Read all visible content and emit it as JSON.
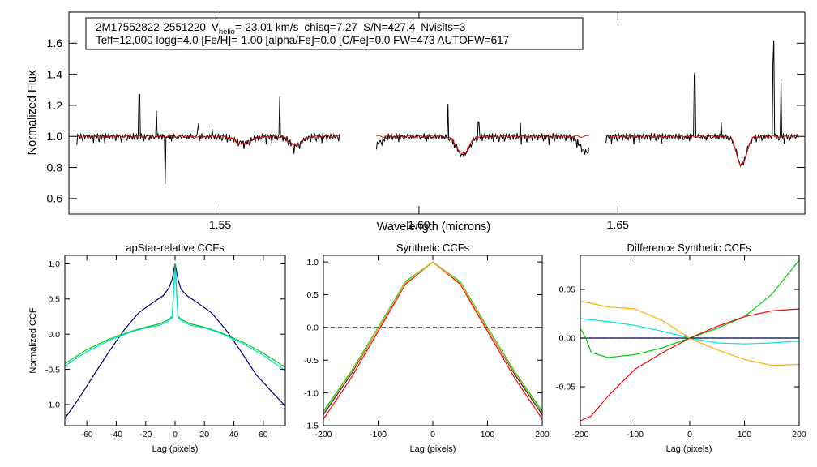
{
  "chart_data": [
    {
      "id": "spectrum",
      "type": "line",
      "title": "",
      "xlabel": "Wavelength (microns)",
      "ylabel": "Normalized Flux",
      "xlim": [
        1.512,
        1.697
      ],
      "ylim": [
        0.5,
        1.8
      ],
      "xticks": [
        "1.55",
        "1.60",
        "1.65"
      ],
      "xtick_values": [
        1.55,
        1.6,
        1.65
      ],
      "yticks": [
        "0.6",
        "0.8",
        "1.0",
        "1.2",
        "1.4",
        "1.6"
      ],
      "ytick_values": [
        0.6,
        0.8,
        1.0,
        1.2,
        1.4,
        1.6
      ],
      "annotation": {
        "line1": {
          "star": "2M17552822-2551220",
          "vhelio_label": "V",
          "vhelio_sub": "helio",
          "vhelio_value": "=-23.01 km/s",
          "chisq": "chisq=7.27",
          "sn": "S/N=427.4",
          "nvisits": "Nvisits=3"
        },
        "line2": "Teff=12,000 logg=4.0 [Fe/H]=-1.00 [alpha/Fe]=0.0 [C/Fe]=0.0 FW=473 AUTOFW=617"
      },
      "chips": [
        [
          1.514,
          1.58
        ],
        [
          1.5893,
          1.6427
        ],
        [
          1.647,
          1.6955
        ]
      ],
      "series": [
        {
          "name": "observed",
          "color": "#000000",
          "features": [
            [
              1.5558,
              0.04,
              0.002
            ],
            [
              1.569,
              0.06,
              0.0015
            ],
            [
              1.611,
              0.12,
              0.0015
            ],
            [
              1.642,
              0.1,
              0.0015
            ],
            [
              1.6811,
              0.18,
              0.0012
            ]
          ],
          "spikes": [
            [
              1.5297,
              0.27
            ],
            [
              1.534,
              0.17
            ],
            [
              1.5362,
              -0.29
            ],
            [
              1.5445,
              0.07
            ],
            [
              1.548,
              0.05
            ],
            [
              1.565,
              0.27
            ],
            [
              1.6073,
              0.22
            ],
            [
              1.615,
              0.09
            ],
            [
              1.6255,
              0.07
            ],
            [
              1.6693,
              0.41
            ],
            [
              1.676,
              0.09
            ],
            [
              1.6891,
              0.62
            ],
            [
              1.691,
              0.37
            ],
            [
              1.689,
              -0.12
            ]
          ]
        },
        {
          "name": "synthetic",
          "color": "#ff0000",
          "features": [
            [
              1.5558,
              0.05,
              0.002
            ],
            [
              1.569,
              0.06,
              0.0015
            ],
            [
              1.611,
              0.11,
              0.0015
            ],
            [
              1.6811,
              0.19,
              0.0012
            ]
          ],
          "spikes": []
        }
      ]
    },
    {
      "id": "apstar-ccf",
      "type": "line",
      "title": "apStar-relative CCFs",
      "xlabel": "Lag (pixels)",
      "ylabel": "Normalized CCF",
      "xlim": [
        -75,
        75
      ],
      "ylim": [
        -1.3,
        1.12
      ],
      "xticks": [
        "-60",
        "-40",
        "-20",
        "0",
        "20",
        "40",
        "60"
      ],
      "xtick_values": [
        -60,
        -40,
        -20,
        0,
        20,
        40,
        60
      ],
      "yticks": [
        "-1.0",
        "-0.5",
        "0.0",
        "0.5",
        "1.0"
      ],
      "ytick_values": [
        -1.0,
        -0.5,
        0.0,
        0.5,
        1.0
      ],
      "series": [
        {
          "name": "total",
          "color": "#000080",
          "x": [
            -75,
            -65,
            -55,
            -45,
            -35,
            -25,
            -15,
            -8,
            -4,
            -2,
            0,
            2,
            4,
            8,
            15,
            25,
            35,
            45,
            55,
            65,
            75
          ],
          "y": [
            -1.2,
            -0.9,
            -0.57,
            -0.25,
            0.05,
            0.3,
            0.45,
            0.55,
            0.66,
            0.78,
            1.0,
            0.78,
            0.64,
            0.55,
            0.45,
            0.3,
            0.05,
            -0.25,
            -0.57,
            -0.8,
            -1.02
          ]
        },
        {
          "name": "visit-1",
          "color": "#00cc00",
          "x": [
            -75,
            -60,
            -45,
            -30,
            -20,
            -10,
            -5,
            -2,
            0,
            2,
            5,
            10,
            20,
            30,
            45,
            60,
            75
          ],
          "y": [
            -0.42,
            -0.22,
            -0.07,
            0.04,
            0.1,
            0.15,
            0.2,
            0.25,
            1.0,
            0.25,
            0.2,
            0.15,
            0.1,
            0.03,
            -0.1,
            -0.27,
            -0.47
          ]
        },
        {
          "name": "visit-2",
          "color": "#00e5e5",
          "x": [
            -75,
            -60,
            -45,
            -30,
            -20,
            -10,
            -5,
            -2,
            0,
            2,
            5,
            10,
            20,
            30,
            45,
            60,
            75
          ],
          "y": [
            -0.45,
            -0.25,
            -0.09,
            0.03,
            0.09,
            0.13,
            0.18,
            0.23,
            0.92,
            0.23,
            0.18,
            0.13,
            0.09,
            0.02,
            -0.12,
            -0.3,
            -0.52
          ]
        }
      ]
    },
    {
      "id": "synthetic-ccf",
      "type": "line",
      "title": "Synthetic CCFs",
      "xlabel": "Lag (pixels)",
      "ylabel": "",
      "xlim": [
        -200,
        200
      ],
      "ylim": [
        -1.5,
        1.1
      ],
      "xticks": [
        "-200",
        "-100",
        "0",
        "100",
        "200"
      ],
      "xtick_values": [
        -200,
        -100,
        0,
        100,
        200
      ],
      "yticks": [
        "-1.5",
        "-1.0",
        "-0.5",
        "0.0",
        "0.5",
        "1.0"
      ],
      "ytick_values": [
        -1.5,
        -1.0,
        -0.5,
        0.0,
        0.5,
        1.0
      ],
      "reference_line": {
        "y": 0,
        "style": "dashed"
      },
      "series": [
        {
          "name": "total",
          "color": "#000080",
          "x": [
            -200,
            -150,
            -100,
            -50,
            0,
            50,
            100,
            150,
            200
          ],
          "y": [
            -1.33,
            -0.72,
            -0.02,
            0.68,
            1.0,
            0.68,
            -0.02,
            -0.72,
            -1.33
          ]
        },
        {
          "name": "visit-1",
          "color": "#00cc00",
          "x": [
            -200,
            -150,
            -100,
            -50,
            0,
            50,
            100,
            150,
            200
          ],
          "y": [
            -1.28,
            -0.68,
            0.0,
            0.7,
            1.0,
            0.7,
            0.0,
            -0.68,
            -1.28
          ]
        },
        {
          "name": "visit-2",
          "color": "#00e5e5",
          "x": [
            -200,
            -150,
            -100,
            -50,
            0,
            50,
            100,
            150,
            200
          ],
          "y": [
            -1.3,
            -0.7,
            -0.01,
            0.69,
            1.0,
            0.69,
            -0.01,
            -0.7,
            -1.3
          ]
        },
        {
          "name": "visit-3",
          "color": "#ff0000",
          "x": [
            -200,
            -150,
            -100,
            -50,
            0,
            50,
            100,
            150,
            200
          ],
          "y": [
            -1.4,
            -0.78,
            -0.06,
            0.66,
            1.0,
            0.66,
            -0.06,
            -0.78,
            -1.4
          ]
        },
        {
          "name": "visit-4",
          "color": "#ffb000",
          "x": [
            -200,
            -150,
            -100,
            -50,
            0,
            50,
            100,
            150,
            200
          ],
          "y": [
            -1.31,
            -0.7,
            -0.02,
            0.68,
            1.0,
            0.68,
            -0.02,
            -0.7,
            -1.31
          ]
        }
      ]
    },
    {
      "id": "difference-ccf",
      "type": "line",
      "title": "Difference Synthetic CCFs",
      "xlabel": "Lag (pixels)",
      "ylabel": "",
      "xlim": [
        -200,
        200
      ],
      "ylim": [
        -0.09,
        0.085
      ],
      "xticks": [
        "-200",
        "-100",
        "0",
        "100",
        "200"
      ],
      "xtick_values": [
        -200,
        -100,
        0,
        100,
        200
      ],
      "yticks": [
        "-0.05",
        "0.00",
        "0.05"
      ],
      "ytick_values": [
        -0.05,
        0.0,
        0.05
      ],
      "reference_line": {
        "y": 0,
        "style": "dashed"
      },
      "series": [
        {
          "name": "zero",
          "color": "#000080",
          "x": [
            -200,
            200
          ],
          "y": [
            0.0,
            0.0
          ]
        },
        {
          "name": "green",
          "color": "#00cc00",
          "x": [
            -200,
            -190,
            -180,
            -150,
            -100,
            -50,
            0,
            50,
            100,
            150,
            200
          ],
          "y": [
            0.01,
            0.0,
            -0.015,
            -0.02,
            -0.017,
            -0.01,
            0.0,
            0.01,
            0.022,
            0.045,
            0.08
          ]
        },
        {
          "name": "cyan",
          "color": "#00e5e5",
          "x": [
            -200,
            -150,
            -100,
            -50,
            0,
            50,
            100,
            150,
            200
          ],
          "y": [
            0.02,
            0.017,
            0.013,
            0.007,
            0.0,
            -0.005,
            -0.006,
            -0.005,
            -0.003
          ]
        },
        {
          "name": "red",
          "color": "#ff0000",
          "x": [
            -200,
            -180,
            -150,
            -100,
            -50,
            0,
            50,
            100,
            150,
            200
          ],
          "y": [
            -0.085,
            -0.08,
            -0.06,
            -0.032,
            -0.015,
            0.0,
            0.012,
            0.022,
            0.028,
            0.03
          ]
        },
        {
          "name": "orange",
          "color": "#ffb000",
          "x": [
            -200,
            -150,
            -100,
            -50,
            0,
            50,
            100,
            150,
            200
          ],
          "y": [
            0.038,
            0.032,
            0.03,
            0.018,
            0.0,
            -0.012,
            -0.022,
            -0.028,
            -0.027
          ]
        }
      ]
    }
  ]
}
